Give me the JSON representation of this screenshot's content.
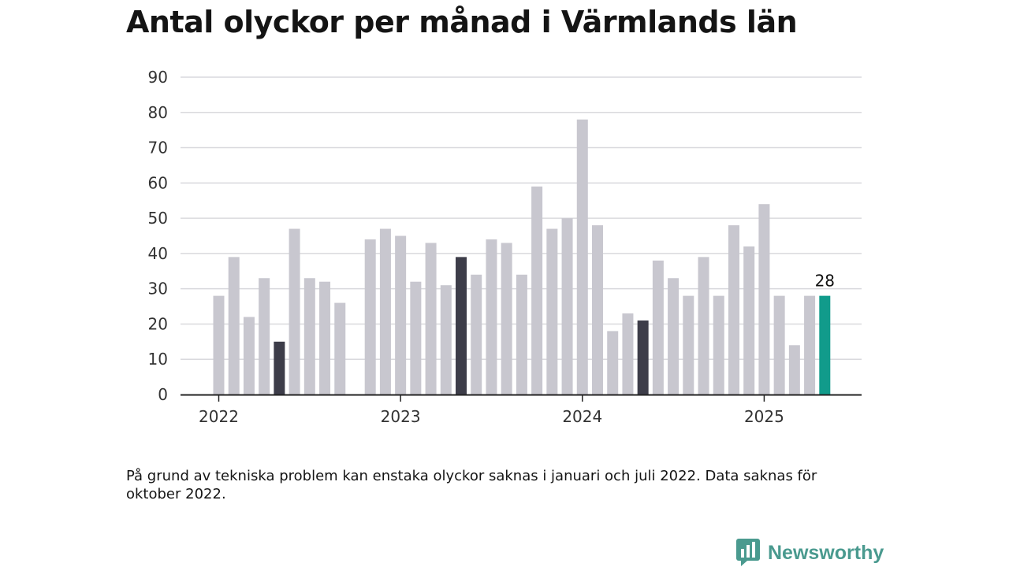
{
  "title": "Antal olyckor per månad i Värmlands län",
  "note": "På grund av tekniska problem kan enstaka olyckor saknas i januari och juli 2022. Data saknas för oktober 2022.",
  "brand": "Newsworthy",
  "colors": {
    "bar": "#c8c7cf",
    "bar_highlight": "#3d3d49",
    "bar_latest": "#119b8b",
    "brand": "#4a9a8f"
  },
  "chart_data": {
    "type": "bar",
    "ylim": [
      0,
      90
    ],
    "yticks": [
      "0",
      "10",
      "20",
      "30",
      "40",
      "50",
      "60",
      "70",
      "80",
      "90"
    ],
    "xtick_labels": [
      "2022",
      "2023",
      "2024",
      "2025"
    ],
    "grid": true,
    "categories": [
      "2022-01",
      "2022-02",
      "2022-03",
      "2022-04",
      "2022-05",
      "2022-06",
      "2022-07",
      "2022-08",
      "2022-09",
      "2022-10",
      "2022-11",
      "2022-12",
      "2023-01",
      "2023-02",
      "2023-03",
      "2023-04",
      "2023-05",
      "2023-06",
      "2023-07",
      "2023-08",
      "2023-09",
      "2023-10",
      "2023-11",
      "2023-12",
      "2024-01",
      "2024-02",
      "2024-03",
      "2024-04",
      "2024-05",
      "2024-06",
      "2024-07",
      "2024-08",
      "2024-09",
      "2024-10",
      "2024-11",
      "2024-12",
      "2025-01",
      "2025-02",
      "2025-03",
      "2025-04",
      "2025-05"
    ],
    "values": [
      28,
      39,
      22,
      33,
      15,
      47,
      33,
      32,
      26,
      null,
      44,
      47,
      45,
      32,
      43,
      31,
      39,
      34,
      44,
      43,
      34,
      59,
      47,
      50,
      78,
      48,
      18,
      23,
      21,
      38,
      33,
      28,
      39,
      28,
      48,
      42,
      54,
      28,
      14,
      28,
      28
    ],
    "highlighted": [
      "2022-05",
      "2023-05",
      "2024-05"
    ],
    "latest": "2025-05",
    "annotation": "28"
  }
}
